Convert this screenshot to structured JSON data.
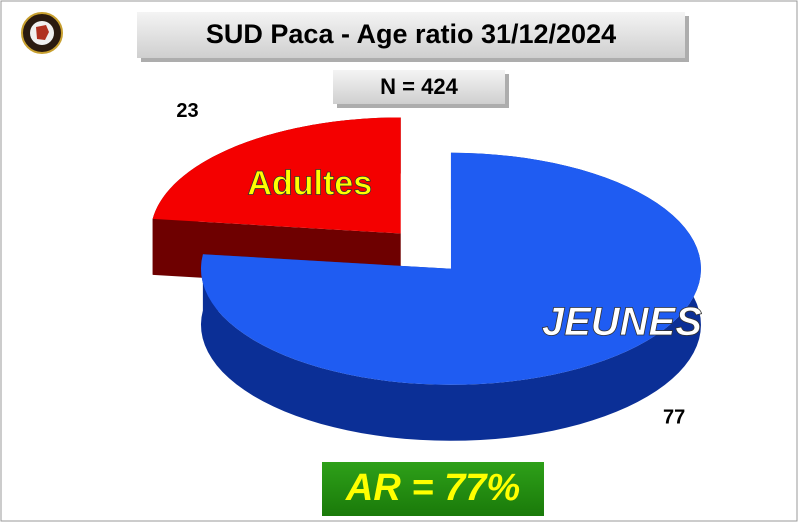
{
  "chart_data": {
    "type": "pie3d",
    "title": "SUD Paca - Age ratio 31/12/2024",
    "subtitle": "N = 424",
    "annotation": "AR = 77%",
    "categories": [
      "JEUNES",
      "Adultes"
    ],
    "values": [
      77,
      23
    ],
    "colors": [
      "#1f5cf2",
      "#f40000"
    ],
    "side_colors": [
      "#0b2f96",
      "#6e0000"
    ],
    "label_colors": [
      "#ffffff",
      "#ffff00"
    ],
    "exploded": [
      false,
      true
    ]
  }
}
